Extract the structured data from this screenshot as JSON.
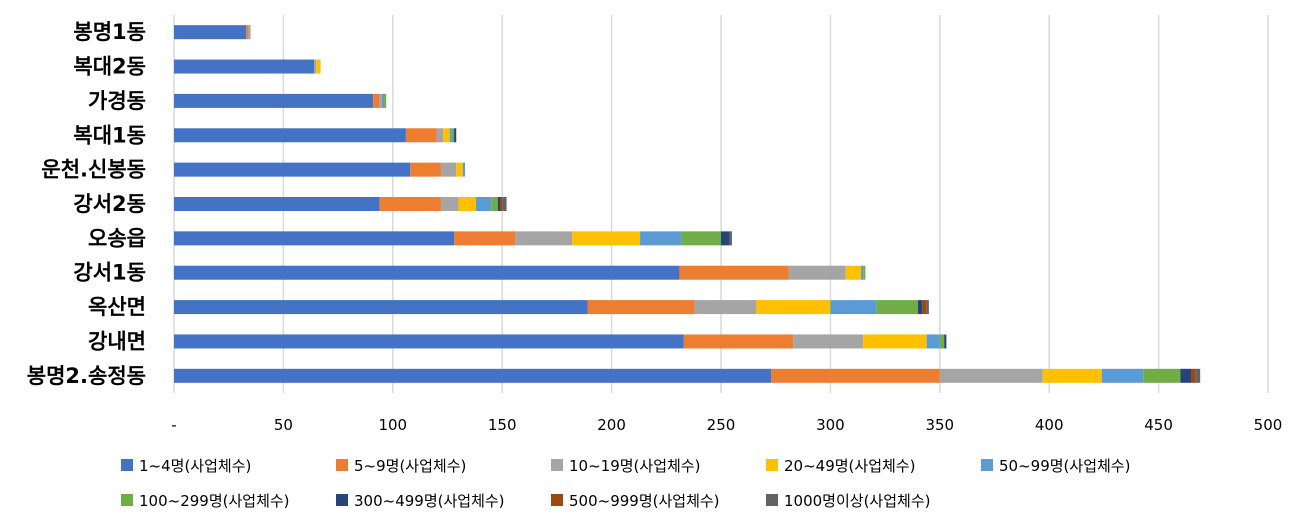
{
  "chart_data": {
    "type": "bar",
    "orientation": "horizontal",
    "stacked": true,
    "title": "",
    "xlabel": "",
    "ylabel": "",
    "xlim": [
      0,
      500
    ],
    "x_ticks": [
      "-",
      "50",
      "100",
      "150",
      "200",
      "250",
      "300",
      "350",
      "400",
      "450",
      "500"
    ],
    "grid": true,
    "legend_position": "bottom",
    "categories": [
      "봉명1동",
      "복대2동",
      "가경동",
      "복대1동",
      "운천.신봉동",
      "강서2동",
      "오송읍",
      "강서1동",
      "옥산면",
      "강내면",
      "봉명2.송정동"
    ],
    "series": [
      {
        "name": "1~4명(사업체수)",
        "color": "#4472C4",
        "values": [
          33,
          64,
          91,
          106,
          108,
          94,
          128,
          231,
          189,
          233,
          273
        ]
      },
      {
        "name": "5~9명(사업체수)",
        "color": "#ED7D31",
        "values": [
          1,
          0,
          3,
          14,
          14,
          28,
          28,
          50,
          49,
          50,
          77
        ]
      },
      {
        "name": "10~19명(사업체수)",
        "color": "#A5A5A5",
        "values": [
          1,
          1,
          1,
          3,
          7,
          8,
          26,
          26,
          28,
          32,
          47
        ]
      },
      {
        "name": "20~49명(사업체수)",
        "color": "#FFC000",
        "values": [
          0,
          2,
          0,
          3,
          3,
          8,
          31,
          7,
          34,
          29,
          27
        ]
      },
      {
        "name": "50~99명(사업체수)",
        "color": "#5B9BD5",
        "values": [
          0,
          0,
          1,
          1,
          1,
          7,
          19,
          1,
          21,
          6,
          19
        ]
      },
      {
        "name": "100~299명(사업체수)",
        "color": "#70AD47",
        "values": [
          0,
          0,
          1,
          1,
          0,
          3,
          18,
          1,
          19,
          2,
          17
        ]
      },
      {
        "name": "300~499명(사업체수)",
        "color": "#264478",
        "values": [
          0,
          0,
          0,
          1,
          0,
          1,
          4,
          0,
          2,
          1,
          5
        ]
      },
      {
        "name": "500~999명(사업체수)",
        "color": "#9E480E",
        "values": [
          0,
          0,
          0,
          0,
          0,
          1,
          0,
          0,
          2,
          0,
          2
        ]
      },
      {
        "name": "1000명이상(사업체수)",
        "color": "#636363",
        "values": [
          0,
          0,
          0,
          0,
          0,
          2,
          1,
          0,
          1,
          0,
          2
        ]
      }
    ]
  }
}
